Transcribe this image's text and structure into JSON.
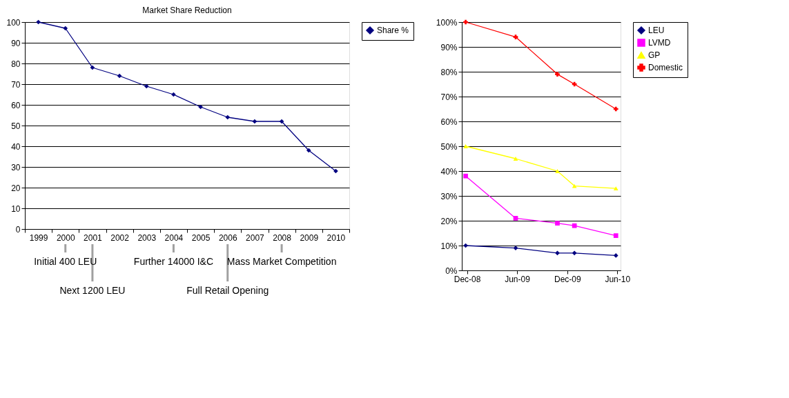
{
  "chart_data": [
    {
      "type": "line",
      "title": "Market Share Reduction",
      "categories": [
        "1999",
        "2000",
        "2001",
        "2002",
        "2003",
        "2004",
        "2005",
        "2006",
        "2007",
        "2008",
        "2009",
        "2010"
      ],
      "series": [
        {
          "name": "Share %",
          "color": "#000080",
          "marker": "diamond",
          "values": [
            100,
            97,
            78,
            74,
            69,
            65,
            59,
            54,
            52,
            52,
            38,
            28
          ]
        }
      ],
      "ylim": [
        0,
        100
      ],
      "yticks": [
        0,
        10,
        20,
        30,
        40,
        50,
        60,
        70,
        80,
        90,
        100
      ],
      "grid": "y",
      "legend": "right",
      "line_style": "solid",
      "annotations": [
        {
          "text": "Initial 400 LEU",
          "x": "2000"
        },
        {
          "text": "Next 1200 LEU",
          "x": "2001"
        },
        {
          "text": "Further 14000 I&C",
          "x": "2004"
        },
        {
          "text": "Full Retail Opening",
          "x": "2006"
        },
        {
          "text": "Mass Market Competition",
          "x": "2008"
        }
      ]
    },
    {
      "type": "line",
      "x": [
        "2008-11-26",
        "2009-05-27",
        "2009-10-26",
        "2009-12-27",
        "2010-05-27"
      ],
      "series": [
        {
          "name": "LEU",
          "color": "#000080",
          "marker": "diamond",
          "values": [
            10,
            9,
            7,
            7,
            6
          ]
        },
        {
          "name": "LVMD",
          "color": "#ff00ff",
          "marker": "square",
          "values": [
            38,
            21,
            19,
            18,
            14
          ]
        },
        {
          "name": "GP",
          "color": "#ffff00",
          "marker": "triangle",
          "values": [
            50,
            45,
            40,
            34,
            33
          ]
        },
        {
          "name": "Domestic",
          "color": "#ff0000",
          "marker": "cross",
          "values": [
            100,
            94,
            79,
            75,
            65
          ]
        }
      ],
      "xlim": [
        "2008-11-12",
        "2010-06-13"
      ],
      "xticks": [
        {
          "value": "2008-12-01",
          "label": "Dec-08"
        },
        {
          "value": "2009-06-01",
          "label": "Jun-09"
        },
        {
          "value": "2009-12-01",
          "label": "Dec-09"
        },
        {
          "value": "2010-06-01",
          "label": "Jun-10"
        }
      ],
      "ylim": [
        0,
        100
      ],
      "yticks": [
        {
          "value": 0,
          "label": "0%"
        },
        {
          "value": 10,
          "label": "10%"
        },
        {
          "value": 20,
          "label": "20%"
        },
        {
          "value": 30,
          "label": "30%"
        },
        {
          "value": 40,
          "label": "40%"
        },
        {
          "value": 50,
          "label": "50%"
        },
        {
          "value": 60,
          "label": "60%"
        },
        {
          "value": 70,
          "label": "70%"
        },
        {
          "value": 80,
          "label": "80%"
        },
        {
          "value": 90,
          "label": "90%"
        },
        {
          "value": 100,
          "label": "100%"
        }
      ],
      "grid": "y",
      "legend": "right",
      "line_style": "solid"
    }
  ]
}
